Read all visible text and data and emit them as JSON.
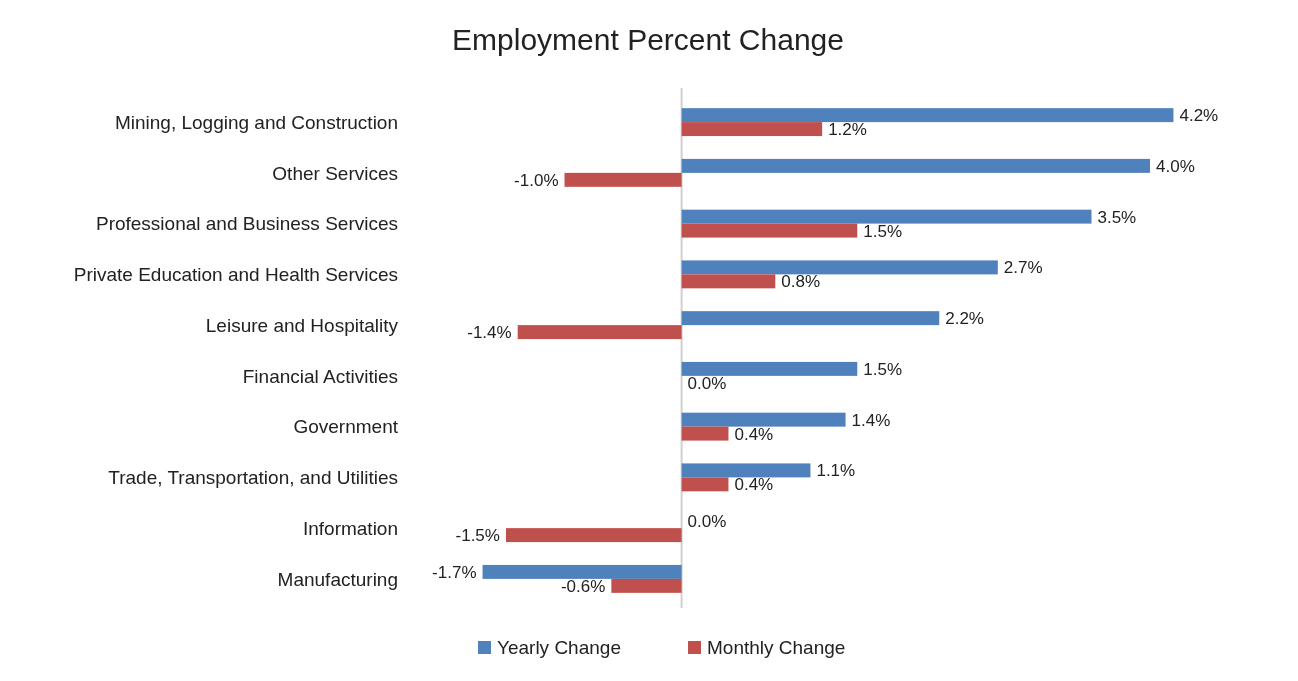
{
  "chart_data": {
    "type": "bar",
    "orientation": "horizontal",
    "title": "Employment Percent Change",
    "categories": [
      "Mining, Logging and Construction",
      "Other Services",
      "Professional and Business Services",
      "Private Education and Health Services",
      "Leisure and Hospitality",
      "Financial Activities",
      "Government",
      "Trade, Transportation, and Utilities",
      "Information",
      "Manufacturing"
    ],
    "series": [
      {
        "name": "Yearly Change",
        "color": "#4f81bd",
        "values": [
          4.2,
          4.0,
          3.5,
          2.7,
          2.2,
          1.5,
          1.4,
          1.1,
          0.0,
          -1.7
        ],
        "value_labels": [
          "4.2%",
          "4.0%",
          "3.5%",
          "2.7%",
          "2.2%",
          "1.5%",
          "1.4%",
          "1.1%",
          "0.0%",
          "-1.7%"
        ]
      },
      {
        "name": "Monthly Change",
        "color": "#c0504d",
        "values": [
          1.2,
          -1.0,
          1.5,
          0.8,
          -1.4,
          0.0,
          0.4,
          0.4,
          -1.5,
          -0.6
        ],
        "value_labels": [
          "1.2%",
          "-1.0%",
          "1.5%",
          "0.8%",
          "-1.4%",
          "0.0%",
          "0.4%",
          "0.4%",
          "-1.5%",
          "-0.6%"
        ]
      }
    ],
    "legend": "bottom"
  }
}
